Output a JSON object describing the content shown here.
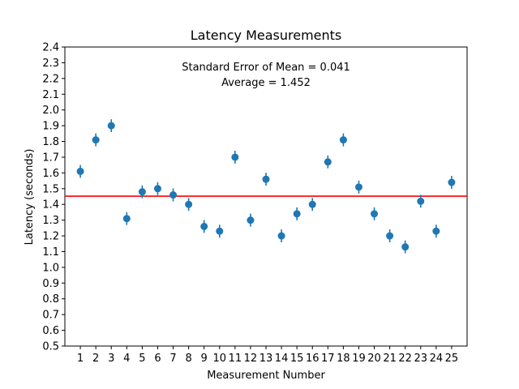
{
  "chart_data": {
    "type": "scatter",
    "title": "Latency Measurements",
    "xlabel": "Measurement Number",
    "ylabel": "Latency (seconds)",
    "xlim": [
      0,
      26
    ],
    "ylim": [
      0.5,
      2.4
    ],
    "x": [
      1,
      2,
      3,
      4,
      5,
      6,
      7,
      8,
      9,
      10,
      11,
      12,
      13,
      14,
      15,
      16,
      17,
      18,
      19,
      20,
      21,
      22,
      23,
      24,
      25
    ],
    "y": [
      1.61,
      1.81,
      1.9,
      1.31,
      1.48,
      1.5,
      1.46,
      1.4,
      1.26,
      1.23,
      1.7,
      1.3,
      1.56,
      1.2,
      1.34,
      1.4,
      1.67,
      1.81,
      1.51,
      1.34,
      1.2,
      1.13,
      1.42,
      1.23,
      1.54
    ],
    "error": 0.041,
    "mean_line": 1.452,
    "x_ticks": [
      1,
      2,
      3,
      4,
      5,
      6,
      7,
      8,
      9,
      10,
      11,
      12,
      13,
      14,
      15,
      16,
      17,
      18,
      19,
      20,
      21,
      22,
      23,
      24,
      25
    ],
    "y_ticks": [
      0.5,
      0.6,
      0.7,
      0.8,
      0.9,
      1.0,
      1.1,
      1.2,
      1.3,
      1.4,
      1.5,
      1.6,
      1.7,
      1.8,
      1.9,
      2.0,
      2.1,
      2.2,
      2.3,
      2.4
    ],
    "annotations": [
      "Standard Error of Mean = 0.041",
      "Average = 1.452"
    ],
    "point_color": "#1f77b4",
    "mean_line_color": "#ff0000",
    "grid": false
  }
}
